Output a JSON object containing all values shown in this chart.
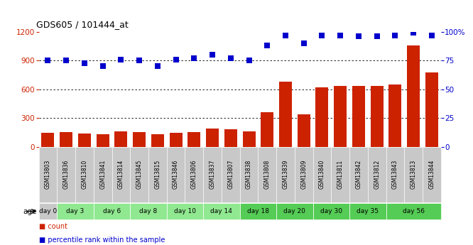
{
  "title": "GDS605 / 101444_at",
  "gsm_labels": [
    "GSM13803",
    "GSM13836",
    "GSM13810",
    "GSM13841",
    "GSM13814",
    "GSM13845",
    "GSM13815",
    "GSM13846",
    "GSM13806",
    "GSM13837",
    "GSM13807",
    "GSM13838",
    "GSM13808",
    "GSM13839",
    "GSM13809",
    "GSM13840",
    "GSM13811",
    "GSM13842",
    "GSM13812",
    "GSM13843",
    "GSM13813",
    "GSM13844"
  ],
  "count_values": [
    150,
    155,
    140,
    135,
    160,
    155,
    130,
    145,
    155,
    195,
    185,
    160,
    360,
    680,
    340,
    620,
    640,
    640,
    640,
    650,
    1060,
    780
  ],
  "percentile_values": [
    75,
    75,
    73,
    70,
    76,
    75,
    70,
    76,
    77,
    80,
    77,
    75,
    88,
    97,
    90,
    97,
    97,
    96,
    96,
    97,
    99,
    97
  ],
  "day_groups": [
    {
      "label": "day 0",
      "start": 0,
      "end": 1,
      "color": "#c8c8c8"
    },
    {
      "label": "day 3",
      "start": 1,
      "end": 3,
      "color": "#90e890"
    },
    {
      "label": "day 6",
      "start": 3,
      "end": 5,
      "color": "#90e890"
    },
    {
      "label": "day 8",
      "start": 5,
      "end": 7,
      "color": "#90e890"
    },
    {
      "label": "day 10",
      "start": 7,
      "end": 9,
      "color": "#90e890"
    },
    {
      "label": "day 14",
      "start": 9,
      "end": 11,
      "color": "#90e890"
    },
    {
      "label": "day 18",
      "start": 11,
      "end": 13,
      "color": "#55cc55"
    },
    {
      "label": "day 20",
      "start": 13,
      "end": 15,
      "color": "#55cc55"
    },
    {
      "label": "day 30",
      "start": 15,
      "end": 17,
      "color": "#55cc55"
    },
    {
      "label": "day 35",
      "start": 17,
      "end": 19,
      "color": "#55cc55"
    },
    {
      "label": "day 56",
      "start": 19,
      "end": 22,
      "color": "#55cc55"
    }
  ],
  "gsm_row_color": "#c8c8c8",
  "bar_color": "#cc2200",
  "dot_color": "#0000cc",
  "left_ylim": [
    0,
    1200
  ],
  "left_yticks": [
    0,
    300,
    600,
    900,
    1200
  ],
  "right_ylim": [
    0,
    100
  ],
  "right_yticks": [
    0,
    25,
    50,
    75,
    100
  ],
  "right_yticklabels": [
    "0",
    "25",
    "50",
    "75",
    "100%"
  ],
  "grid_values": [
    300,
    600,
    900
  ],
  "bar_width": 0.7,
  "dot_size": 28,
  "figsize": [
    6.66,
    3.45
  ],
  "dpi": 100
}
